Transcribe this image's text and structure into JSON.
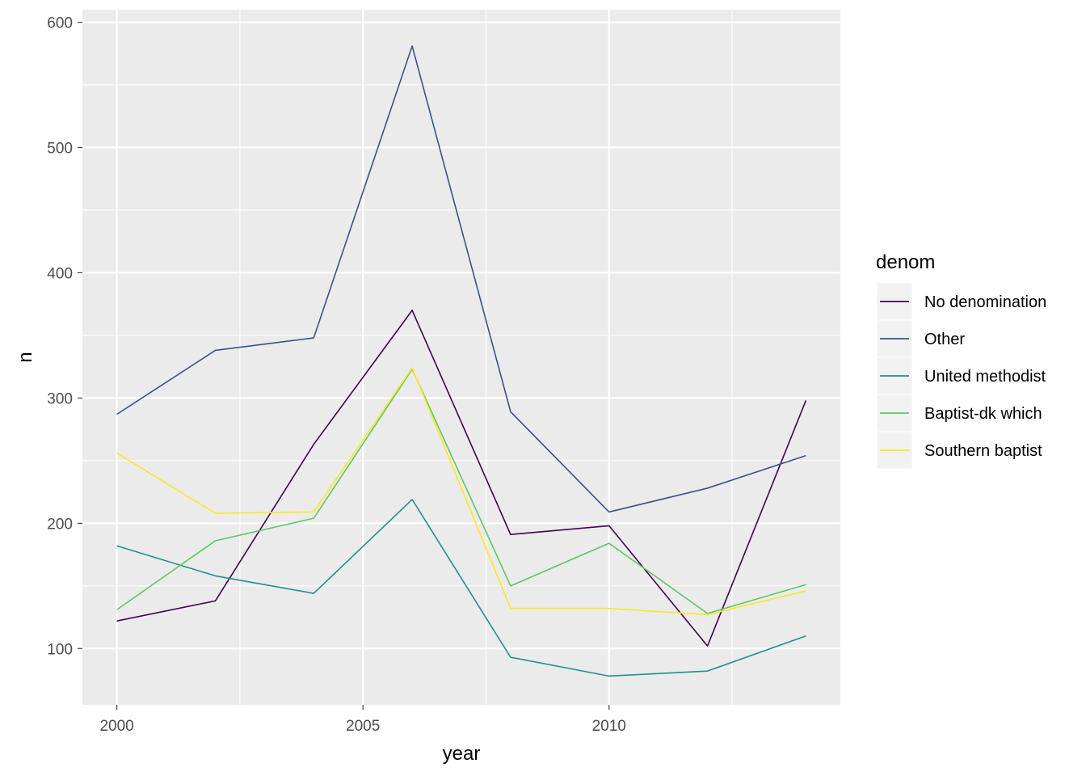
{
  "chart_data": {
    "type": "line",
    "x": [
      2000,
      2002,
      2004,
      2006,
      2008,
      2010,
      2012,
      2014
    ],
    "xlabel": "year",
    "ylabel": "n",
    "xlim": [
      1999.3,
      2014.7
    ],
    "ylim": [
      55,
      610
    ],
    "x_ticks": [
      2000,
      2005,
      2010
    ],
    "x_minor_ticks": [
      2002.5,
      2007.5,
      2012.5
    ],
    "y_ticks": [
      100,
      200,
      300,
      400,
      500,
      600
    ],
    "y_minor_ticks": [
      150,
      250,
      350,
      450,
      550
    ],
    "x_tick_labels": [
      "2000",
      "2005",
      "2010"
    ],
    "y_tick_labels": [
      "100",
      "200",
      "300",
      "400",
      "500",
      "600"
    ],
    "grid": true,
    "panel_background": "#EBEBEB",
    "grid_color": "#FFFFFF",
    "legend": {
      "title": "denom",
      "placement": "right"
    },
    "series": [
      {
        "name": "No denomination",
        "color": "#440154",
        "values": [
          122,
          138,
          263,
          370,
          191,
          198,
          102,
          298
        ]
      },
      {
        "name": "Other",
        "color": "#3B528B",
        "values": [
          287,
          338,
          348,
          581,
          289,
          209,
          228,
          254
        ]
      },
      {
        "name": "United methodist",
        "color": "#21908C",
        "values": [
          182,
          158,
          144,
          219,
          93,
          78,
          82,
          110
        ]
      },
      {
        "name": "Baptist-dk which",
        "color": "#5DC863",
        "values": [
          131,
          186,
          204,
          323,
          150,
          184,
          128,
          151
        ]
      },
      {
        "name": "Southern baptist",
        "color": "#FDE725",
        "values": [
          256,
          208,
          209,
          324,
          132,
          132,
          127,
          146
        ]
      }
    ]
  }
}
